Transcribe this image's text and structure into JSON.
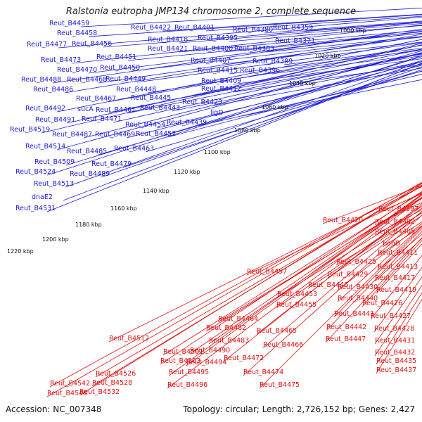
{
  "title": "Ralstonia eutropha JMP134 chromosome 2, complete sequence",
  "footer": {
    "accession": "Accession: NC_007348",
    "topology": "Topology: circular; Length: 2,726,152 bp; Genes: 2,427"
  },
  "colors": {
    "plus_strand": "#1a1adb",
    "minus_strand": "#e01010",
    "backbone": "#808080",
    "scale_dots": "#2e8b2e"
  },
  "scale_ticks": [
    "1000 kbp",
    "1020 kbp",
    "1040 kbp",
    "1060 kbp",
    "1080 kbp",
    "1100 kbp",
    "1120 kbp",
    "1140 kbp",
    "1160 kbp",
    "1180 kbp",
    "1200 kbp",
    "1220 kbp"
  ],
  "plus_labels": [
    "Reut_B4459",
    "Reut_B4458",
    "Reut_B4477",
    "Reut_B4456",
    "Reut_B4473",
    "Reut_B4451",
    "Reut_B4470",
    "Reut_B4450",
    "Reut_B4488",
    "Reut_B4468",
    "Reut_B4449",
    "Reut_B4486",
    "Reut_B4448",
    "Reut_B4467",
    "Reut_B4445",
    "Reut_B4492",
    "sucA",
    "Reut_B4461",
    "Reut_B4443",
    "Reut_B4491",
    "Reut_B4471",
    "Reut_B4519",
    "Reut_B4454",
    "Reut_B4487",
    "Reut_B4469",
    "Reut_B4452",
    "Reut_B4514",
    "Reut_B4485",
    "Reut_B4463",
    "Reut_B4509",
    "Reut_B4479",
    "Reut_B4524",
    "Reut_B4489",
    "Reut_B4513",
    "dnaE2",
    "Reut_B4531",
    "Reut_B4422",
    "Reut_B4401",
    "Reut_B4418",
    "Reut_B4395",
    "Reut_B4380",
    "Reut_B4359",
    "Reut_B4421",
    "Reut_B4400",
    "Reut_B4383",
    "Reut_B4371",
    "Reut_B4407",
    "Reut_B4389",
    "Reut_B4415",
    "Reut_B4396",
    "Reut_B4409",
    "Reut_B4412",
    "Reut_B4423",
    "ligD",
    "Reut_B4439"
  ],
  "minus_labels": [
    "Reut_B4397",
    "Reut_B4402",
    "Reut_B4420",
    "Reut_B4405",
    "benD",
    "Reut_B4411",
    "Reut_B4425",
    "Reut_B4413",
    "Reut_B4457",
    "Reut_B4429",
    "Reut_B4417",
    "Reut_B4446",
    "Reut_B4430",
    "Reut_B4419",
    "Reut_B4453",
    "Reut_B4440",
    "Reut_B4426",
    "Reut_B4455",
    "Reut_B4441",
    "Reut_B4427",
    "Reut_B4442",
    "Reut_B4428",
    "Reut_B4464",
    "Reut_B4482",
    "Reut_B4465",
    "Reut_B4447",
    "Reut_B4431",
    "Reut_B4483",
    "Reut_B4466",
    "Reut_B4512",
    "Reut_B4490",
    "Reut_B4432",
    "Reut_B4501",
    "Reut_B4472",
    "Reut_B4435",
    "Reut_B4503",
    "Reut_B4494",
    "Reut_B4437",
    "Reut_B4495",
    "Reut_B4474",
    "Reut_B4526",
    "Reut_B4496",
    "Reut_B4475",
    "Reut_B4542",
    "Reut_B4528",
    "Reut_B4548",
    "Reut_B4532"
  ]
}
